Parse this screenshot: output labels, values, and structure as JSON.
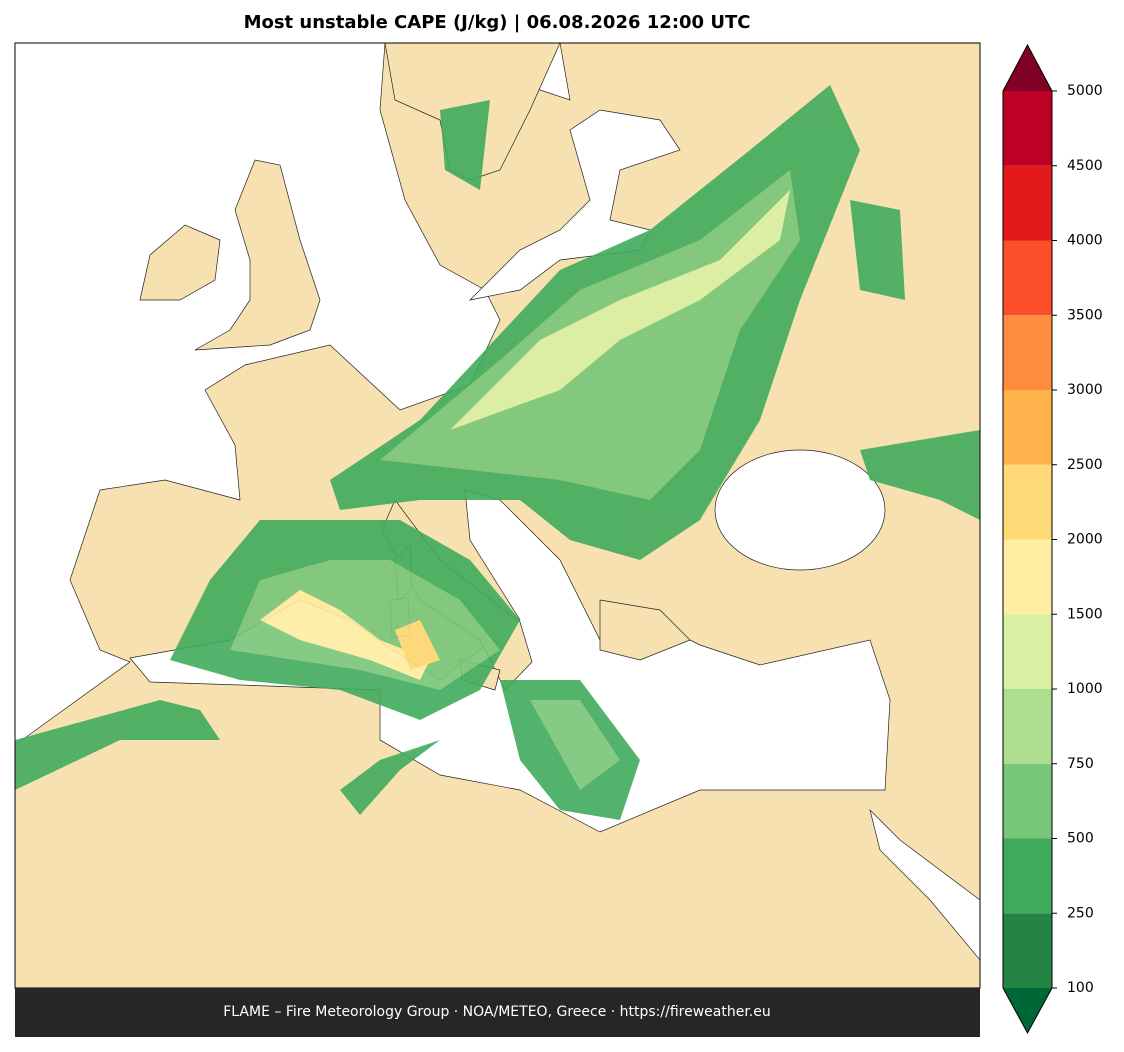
{
  "title": "Most unstable CAPE (J/kg)  |  06.08.2026 12:00 UTC",
  "colorbar": {
    "ticks": [
      100,
      250,
      500,
      750,
      1000,
      1500,
      2000,
      2500,
      3000,
      3500,
      4000,
      4500,
      5000
    ],
    "colors": [
      "#238443",
      "#41ab5d",
      "#78c679",
      "#addd8e",
      "#d9f0a3",
      "#ffeda0",
      "#fed976",
      "#feb24c",
      "#fd8d3c",
      "#fc4e2a",
      "#e31a1c",
      "#bd0026"
    ],
    "under_color": "#006837",
    "over_color": "#800026"
  },
  "footer": "FLAME – Fire Meteorology Group · NOA/METEO, Greece · https://fireweather.eu"
}
